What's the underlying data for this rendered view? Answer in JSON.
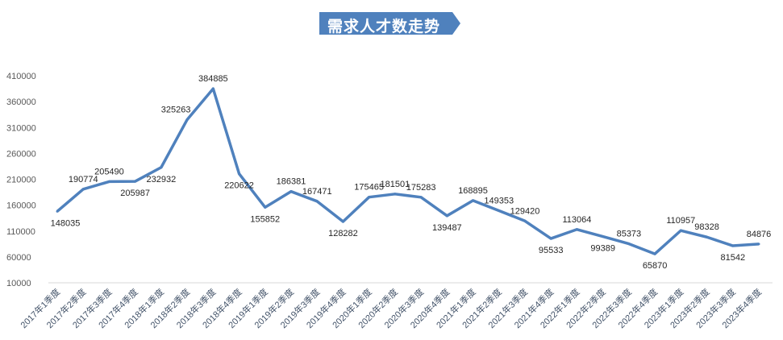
{
  "chart_data": {
    "type": "line",
    "title": "需求人才数走势",
    "categories": [
      "2017年1季度",
      "2017年2季度",
      "2017年3季度",
      "2017年4季度",
      "2018年1季度",
      "2018年2季度",
      "2018年3季度",
      "2018年4季度",
      "2019年1季度",
      "2019年2季度",
      "2019年3季度",
      "2019年4季度",
      "2020年1季度",
      "2020年2季度",
      "2020年3季度",
      "2020年4季度",
      "2021年1季度",
      "2021年2季度",
      "2021年3季度",
      "2021年4季度",
      "2022年1季度",
      "2022年2季度",
      "2022年3季度",
      "2022年4季度",
      "2023年1季度",
      "2023年2季度",
      "2023年3季度",
      "2023年4季度"
    ],
    "values": [
      148035,
      190774,
      205490,
      205987,
      232932,
      325263,
      384885,
      220622,
      155852,
      186381,
      167471,
      128282,
      175465,
      181501,
      175283,
      139487,
      168895,
      149353,
      129420,
      95533,
      113064,
      99389,
      85373,
      65870,
      110957,
      98328,
      81542,
      84876
    ],
    "yticks": [
      "10000",
      "60000",
      "110000",
      "160000",
      "210000",
      "260000",
      "310000",
      "360000",
      "410000"
    ],
    "ylim": [
      10000,
      410000
    ],
    "grid": false,
    "legend": "none",
    "colors": {
      "line": "#4f81bd",
      "title_bg": "#4f81bd",
      "axis_text": "#44546a"
    }
  }
}
